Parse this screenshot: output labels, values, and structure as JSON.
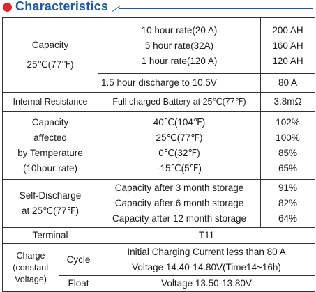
{
  "header": {
    "title": "Characteristics"
  },
  "capacity": {
    "label": "Capacity",
    "temp": "25℃(77℉)",
    "rates": [
      "10 hour rate(20 A)",
      "5 hour rate(32A)",
      "1 hour rate(120 A)"
    ],
    "values": [
      "200 AH",
      "160 AH",
      "120 AH"
    ],
    "discharge_label": "1.5 hour discharge to 10.5V",
    "discharge_value": "80 A"
  },
  "internal_resistance": {
    "label": "Internal Resistance",
    "condition": "Full charged Battery at 25℃(77℉)",
    "value": "3.8mΩ"
  },
  "temperature": {
    "label_lines": [
      "Capacity",
      "affected",
      "by Temperature",
      "(10hour rate)"
    ],
    "temps": [
      "40℃(104℉)",
      "25℃(77℉)",
      "0℃(32℉)",
      "-15℃(5℉)"
    ],
    "values": [
      "102%",
      "100%",
      "85%",
      "65%"
    ]
  },
  "self_discharge": {
    "label_lines": [
      "Self-Discharge",
      "at 25℃(77℉)"
    ],
    "conditions": [
      "Capacity after 3 month storage",
      "Capacity after 6 month storage",
      "Capacity after 12 month storage"
    ],
    "values": [
      "91%",
      "82%",
      "64%"
    ]
  },
  "terminal": {
    "label": "Terminal",
    "value": "T11"
  },
  "charge": {
    "label_lines": [
      "Charge",
      "(constant",
      "Voltage)"
    ],
    "cycle_label": "Cycle",
    "cycle_lines": [
      "Initial Charging Current less than 80 A",
      "Voltage 14.40-14.80V(Time14~16h)"
    ],
    "float_label": "Float",
    "float_value": "Voltage 13.50-13.80V"
  },
  "colors": {
    "title": "#1f5a9e",
    "bullet": "#e0262b",
    "border": "#333333"
  }
}
